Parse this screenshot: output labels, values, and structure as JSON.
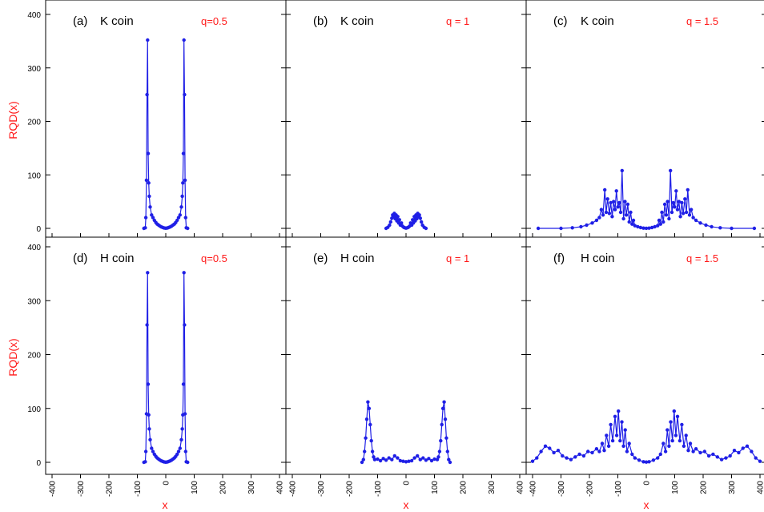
{
  "colors": {
    "series": "#1f1fe6",
    "labels": "#ff1a1a",
    "axes": "#000000"
  },
  "chart_data": {
    "type": "line",
    "layout": "2x3 grid of panels, shared axes",
    "ylabel": "RQD(x)",
    "xlabel": "x",
    "xlim": [
      -400,
      400
    ],
    "ylim": [
      0,
      400
    ],
    "xticks": [
      -400,
      -300,
      -200,
      -100,
      0,
      100,
      200,
      300,
      400
    ],
    "yticks": [
      0,
      100,
      200,
      300,
      400
    ],
    "grid": false,
    "panels": [
      {
        "label": "(a)",
        "coin": "K coin",
        "q": "q=0.5",
        "points": [
          [
            -77,
            0
          ],
          [
            -72,
            1
          ],
          [
            -70,
            20
          ],
          [
            -68,
            90
          ],
          [
            -66,
            250
          ],
          [
            -64,
            352
          ],
          [
            -62,
            140
          ],
          [
            -60,
            85
          ],
          [
            -58,
            60
          ],
          [
            -55,
            40
          ],
          [
            -50,
            25
          ],
          [
            -45,
            20
          ],
          [
            -40,
            15
          ],
          [
            -35,
            11
          ],
          [
            -30,
            8
          ],
          [
            -25,
            6
          ],
          [
            -20,
            4
          ],
          [
            -15,
            2.5
          ],
          [
            -10,
            1.5
          ],
          [
            -5,
            0.6
          ],
          [
            0,
            0.3
          ],
          [
            5,
            0.6
          ],
          [
            10,
            1.5
          ],
          [
            15,
            2.5
          ],
          [
            20,
            4
          ],
          [
            25,
            6
          ],
          [
            30,
            8
          ],
          [
            35,
            11
          ],
          [
            40,
            15
          ],
          [
            45,
            20
          ],
          [
            50,
            25
          ],
          [
            55,
            40
          ],
          [
            58,
            60
          ],
          [
            60,
            85
          ],
          [
            62,
            140
          ],
          [
            64,
            352
          ],
          [
            66,
            250
          ],
          [
            68,
            90
          ],
          [
            70,
            20
          ],
          [
            72,
            1
          ],
          [
            77,
            0
          ]
        ]
      },
      {
        "label": "(b)",
        "coin": "K coin",
        "q": "q = 1",
        "points": [
          [
            -70,
            0
          ],
          [
            -64,
            2
          ],
          [
            -58,
            6
          ],
          [
            -54,
            12
          ],
          [
            -50,
            19
          ],
          [
            -47,
            25
          ],
          [
            -44,
            22
          ],
          [
            -41,
            28
          ],
          [
            -38,
            18
          ],
          [
            -35,
            25
          ],
          [
            -32,
            14
          ],
          [
            -29,
            22
          ],
          [
            -26,
            10
          ],
          [
            -23,
            16
          ],
          [
            -20,
            6
          ],
          [
            -16,
            10
          ],
          [
            -12,
            4
          ],
          [
            -8,
            2
          ],
          [
            -4,
            1
          ],
          [
            0,
            0.5
          ],
          [
            4,
            1
          ],
          [
            8,
            2
          ],
          [
            12,
            4
          ],
          [
            16,
            10
          ],
          [
            20,
            6
          ],
          [
            23,
            16
          ],
          [
            26,
            10
          ],
          [
            29,
            22
          ],
          [
            32,
            14
          ],
          [
            35,
            25
          ],
          [
            38,
            18
          ],
          [
            41,
            28
          ],
          [
            44,
            22
          ],
          [
            47,
            25
          ],
          [
            50,
            19
          ],
          [
            54,
            12
          ],
          [
            58,
            6
          ],
          [
            64,
            2
          ],
          [
            70,
            0
          ]
        ]
      },
      {
        "label": "(c)",
        "coin": "K coin",
        "q": "q = 1.5",
        "points": [
          [
            -380,
            0
          ],
          [
            -300,
            0
          ],
          [
            -260,
            1
          ],
          [
            -230,
            3
          ],
          [
            -210,
            6
          ],
          [
            -190,
            10
          ],
          [
            -175,
            15
          ],
          [
            -165,
            20
          ],
          [
            -158,
            35
          ],
          [
            -152,
            25
          ],
          [
            -146,
            72
          ],
          [
            -141,
            30
          ],
          [
            -136,
            55
          ],
          [
            -130,
            28
          ],
          [
            -125,
            48
          ],
          [
            -120,
            22
          ],
          [
            -115,
            50
          ],
          [
            -110,
            35
          ],
          [
            -105,
            70
          ],
          [
            -100,
            40
          ],
          [
            -95,
            48
          ],
          [
            -90,
            30
          ],
          [
            -85,
            108
          ],
          [
            -80,
            18
          ],
          [
            -75,
            50
          ],
          [
            -70,
            25
          ],
          [
            -65,
            45
          ],
          [
            -60,
            12
          ],
          [
            -55,
            30
          ],
          [
            -50,
            8
          ],
          [
            -45,
            15
          ],
          [
            -40,
            5
          ],
          [
            -30,
            3
          ],
          [
            -20,
            1.5
          ],
          [
            -10,
            0.5
          ],
          [
            0,
            0.2
          ],
          [
            10,
            0.5
          ],
          [
            20,
            1.5
          ],
          [
            30,
            3
          ],
          [
            40,
            5
          ],
          [
            45,
            15
          ],
          [
            50,
            8
          ],
          [
            55,
            30
          ],
          [
            60,
            12
          ],
          [
            65,
            45
          ],
          [
            70,
            25
          ],
          [
            75,
            50
          ],
          [
            80,
            18
          ],
          [
            85,
            108
          ],
          [
            90,
            30
          ],
          [
            95,
            48
          ],
          [
            100,
            40
          ],
          [
            105,
            70
          ],
          [
            110,
            35
          ],
          [
            115,
            50
          ],
          [
            120,
            22
          ],
          [
            125,
            48
          ],
          [
            130,
            28
          ],
          [
            136,
            55
          ],
          [
            141,
            30
          ],
          [
            146,
            72
          ],
          [
            152,
            25
          ],
          [
            158,
            35
          ],
          [
            165,
            20
          ],
          [
            175,
            15
          ],
          [
            190,
            10
          ],
          [
            210,
            6
          ],
          [
            230,
            3
          ],
          [
            260,
            1
          ],
          [
            300,
            0
          ],
          [
            380,
            0
          ]
        ]
      },
      {
        "label": "(d)",
        "coin": "H coin",
        "q": "q=0.5",
        "points": [
          [
            -77,
            0
          ],
          [
            -72,
            1
          ],
          [
            -70,
            20
          ],
          [
            -68,
            90
          ],
          [
            -66,
            255
          ],
          [
            -64,
            352
          ],
          [
            -62,
            145
          ],
          [
            -60,
            88
          ],
          [
            -58,
            62
          ],
          [
            -55,
            42
          ],
          [
            -50,
            26
          ],
          [
            -45,
            20
          ],
          [
            -40,
            15
          ],
          [
            -35,
            11
          ],
          [
            -30,
            8
          ],
          [
            -25,
            6
          ],
          [
            -20,
            4
          ],
          [
            -15,
            2.5
          ],
          [
            -10,
            1.5
          ],
          [
            -5,
            0.6
          ],
          [
            0,
            0.3
          ],
          [
            5,
            0.6
          ],
          [
            10,
            1.5
          ],
          [
            15,
            2.5
          ],
          [
            20,
            4
          ],
          [
            25,
            6
          ],
          [
            30,
            8
          ],
          [
            35,
            11
          ],
          [
            40,
            15
          ],
          [
            45,
            20
          ],
          [
            50,
            26
          ],
          [
            55,
            42
          ],
          [
            58,
            62
          ],
          [
            60,
            88
          ],
          [
            62,
            145
          ],
          [
            64,
            352
          ],
          [
            66,
            255
          ],
          [
            68,
            90
          ],
          [
            70,
            20
          ],
          [
            72,
            1
          ],
          [
            77,
            0
          ]
        ]
      },
      {
        "label": "(e)",
        "coin": "H coin",
        "q": "q = 1",
        "points": [
          [
            -155,
            0
          ],
          [
            -150,
            5
          ],
          [
            -146,
            20
          ],
          [
            -142,
            45
          ],
          [
            -138,
            80
          ],
          [
            -134,
            112
          ],
          [
            -130,
            100
          ],
          [
            -126,
            70
          ],
          [
            -122,
            40
          ],
          [
            -118,
            20
          ],
          [
            -114,
            10
          ],
          [
            -110,
            5
          ],
          [
            -100,
            6
          ],
          [
            -90,
            3
          ],
          [
            -80,
            7
          ],
          [
            -70,
            4
          ],
          [
            -60,
            8
          ],
          [
            -50,
            5
          ],
          [
            -40,
            12
          ],
          [
            -30,
            8
          ],
          [
            -20,
            3
          ],
          [
            -10,
            2
          ],
          [
            0,
            1
          ],
          [
            10,
            2
          ],
          [
            20,
            3
          ],
          [
            30,
            8
          ],
          [
            40,
            12
          ],
          [
            50,
            5
          ],
          [
            60,
            8
          ],
          [
            70,
            4
          ],
          [
            80,
            7
          ],
          [
            90,
            3
          ],
          [
            100,
            6
          ],
          [
            110,
            5
          ],
          [
            114,
            10
          ],
          [
            118,
            20
          ],
          [
            122,
            40
          ],
          [
            126,
            70
          ],
          [
            130,
            100
          ],
          [
            134,
            112
          ],
          [
            138,
            80
          ],
          [
            142,
            45
          ],
          [
            146,
            20
          ],
          [
            150,
            5
          ],
          [
            155,
            0
          ]
        ]
      },
      {
        "label": "(f)",
        "coin": "H coin",
        "q": "q = 1.5",
        "points": [
          [
            -400,
            2
          ],
          [
            -385,
            8
          ],
          [
            -370,
            20
          ],
          [
            -355,
            30
          ],
          [
            -340,
            26
          ],
          [
            -325,
            18
          ],
          [
            -310,
            22
          ],
          [
            -295,
            12
          ],
          [
            -280,
            8
          ],
          [
            -265,
            5
          ],
          [
            -250,
            10
          ],
          [
            -235,
            15
          ],
          [
            -220,
            12
          ],
          [
            -205,
            20
          ],
          [
            -190,
            18
          ],
          [
            -175,
            25
          ],
          [
            -165,
            20
          ],
          [
            -155,
            35
          ],
          [
            -148,
            22
          ],
          [
            -140,
            50
          ],
          [
            -132,
            30
          ],
          [
            -125,
            70
          ],
          [
            -118,
            40
          ],
          [
            -110,
            85
          ],
          [
            -104,
            50
          ],
          [
            -98,
            95
          ],
          [
            -92,
            40
          ],
          [
            -86,
            75
          ],
          [
            -80,
            30
          ],
          [
            -74,
            60
          ],
          [
            -68,
            20
          ],
          [
            -60,
            35
          ],
          [
            -50,
            15
          ],
          [
            -40,
            8
          ],
          [
            -25,
            4
          ],
          [
            -10,
            1
          ],
          [
            0,
            0.5
          ],
          [
            10,
            1
          ],
          [
            25,
            4
          ],
          [
            40,
            8
          ],
          [
            50,
            15
          ],
          [
            60,
            35
          ],
          [
            68,
            20
          ],
          [
            74,
            60
          ],
          [
            80,
            30
          ],
          [
            86,
            75
          ],
          [
            92,
            40
          ],
          [
            98,
            95
          ],
          [
            104,
            50
          ],
          [
            110,
            85
          ],
          [
            118,
            40
          ],
          [
            125,
            70
          ],
          [
            132,
            30
          ],
          [
            140,
            50
          ],
          [
            148,
            22
          ],
          [
            155,
            35
          ],
          [
            165,
            20
          ],
          [
            175,
            25
          ],
          [
            190,
            18
          ],
          [
            205,
            20
          ],
          [
            220,
            12
          ],
          [
            235,
            15
          ],
          [
            250,
            10
          ],
          [
            265,
            5
          ],
          [
            280,
            8
          ],
          [
            295,
            12
          ],
          [
            310,
            22
          ],
          [
            325,
            18
          ],
          [
            340,
            26
          ],
          [
            355,
            30
          ],
          [
            370,
            20
          ],
          [
            385,
            8
          ],
          [
            400,
            2
          ]
        ]
      }
    ]
  }
}
